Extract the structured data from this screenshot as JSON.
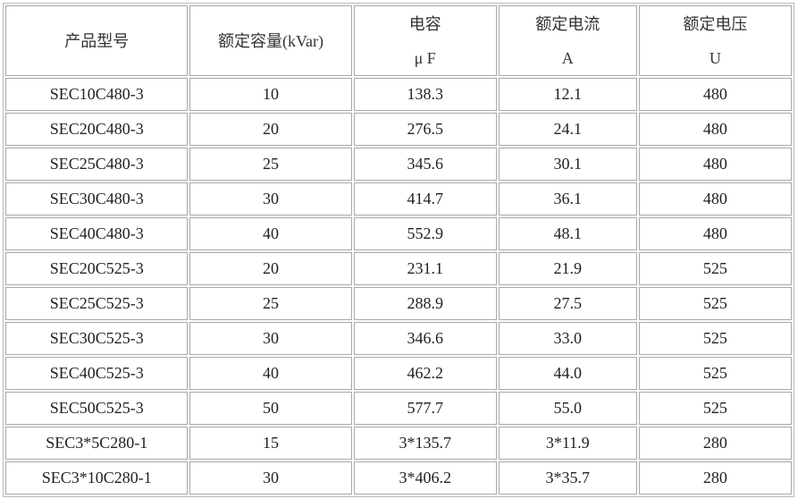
{
  "table": {
    "header": [
      [
        "产品型号"
      ],
      [
        "额定容量(kVar)"
      ],
      [
        "电容",
        "μ F"
      ],
      [
        "额定电流",
        "A"
      ],
      [
        "额定电压",
        "U"
      ]
    ],
    "rows": [
      [
        "SEC10C480-3",
        "10",
        "138.3",
        "12.1",
        "480"
      ],
      [
        "SEC20C480-3",
        "20",
        "276.5",
        "24.1",
        "480"
      ],
      [
        "SEC25C480-3",
        "25",
        "345.6",
        "30.1",
        "480"
      ],
      [
        "SEC30C480-3",
        "30",
        "414.7",
        "36.1",
        "480"
      ],
      [
        "SEC40C480-3",
        "40",
        "552.9",
        "48.1",
        "480"
      ],
      [
        "SEC20C525-3",
        "20",
        "231.1",
        "21.9",
        "525"
      ],
      [
        "SEC25C525-3",
        "25",
        "288.9",
        "27.5",
        "525"
      ],
      [
        "SEC30C525-3",
        "30",
        "346.6",
        "33.0",
        "525"
      ],
      [
        "SEC40C525-3",
        "40",
        "462.2",
        "44.0",
        "525"
      ],
      [
        "SEC50C525-3",
        "50",
        "577.7",
        "55.0",
        "525"
      ],
      [
        "SEC3*5C280-1",
        "15",
        "3*135.7",
        "3*11.9",
        "280"
      ],
      [
        "SEC3*10C280-1",
        "30",
        "3*406.2",
        "3*35.7",
        "280"
      ]
    ]
  }
}
